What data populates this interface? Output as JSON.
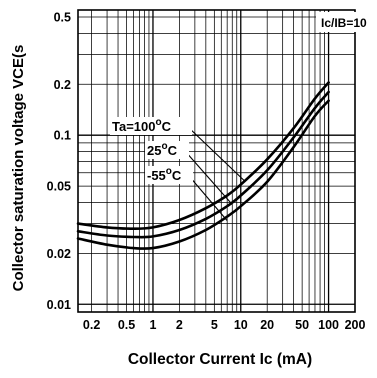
{
  "chart_data": {
    "type": "line",
    "xlabel": "Collector Current Ic (mA)",
    "ylabel": "Collector saturation voltage VCE(s",
    "x_scale": "log",
    "y_scale": "log",
    "xlim": [
      0.14,
      200
    ],
    "ylim": [
      0.009,
      0.55
    ],
    "x_ticks": [
      {
        "value": 0.2,
        "label": "0.2"
      },
      {
        "value": 0.5,
        "label": "0.5"
      },
      {
        "value": 1,
        "label": "1"
      },
      {
        "value": 2,
        "label": "2"
      },
      {
        "value": 5,
        "label": "5"
      },
      {
        "value": 10,
        "label": "10"
      },
      {
        "value": 20,
        "label": "20"
      },
      {
        "value": 50,
        "label": "50"
      },
      {
        "value": 100,
        "label": "100"
      },
      {
        "value": 200,
        "label": "200"
      }
    ],
    "y_ticks": [
      {
        "value": 0.01,
        "label": "0.01"
      },
      {
        "value": 0.02,
        "label": "0.02"
      },
      {
        "value": 0.05,
        "label": "0.05"
      },
      {
        "value": 0.1,
        "label": "0.1"
      },
      {
        "value": 0.2,
        "label": "0.2"
      },
      {
        "value": 0.5,
        "label": "0.5"
      }
    ],
    "condition_label": "Ic/IB=10",
    "series": [
      {
        "name": "Ta=100°C",
        "label_main": "Ta=100",
        "label_sup": "o",
        "label_end": "C",
        "x": [
          0.14,
          0.3,
          0.6,
          1,
          2,
          4,
          7,
          10,
          20,
          40,
          70,
          100
        ],
        "y": [
          0.03,
          0.0285,
          0.028,
          0.0285,
          0.0315,
          0.037,
          0.044,
          0.051,
          0.072,
          0.11,
          0.165,
          0.205
        ]
      },
      {
        "name": "25°C",
        "label_main": "25",
        "label_sup": "o",
        "label_end": "C",
        "x": [
          0.14,
          0.3,
          0.6,
          1,
          2,
          4,
          7,
          10,
          20,
          40,
          70,
          100
        ],
        "y": [
          0.027,
          0.0255,
          0.025,
          0.0252,
          0.0275,
          0.032,
          0.038,
          0.044,
          0.062,
          0.097,
          0.145,
          0.18
        ]
      },
      {
        "name": "-55°C",
        "label_main": "-55",
        "label_sup": "o",
        "label_end": "C",
        "x": [
          0.14,
          0.3,
          0.6,
          1,
          2,
          4,
          7,
          10,
          20,
          40,
          70,
          100
        ],
        "y": [
          0.0245,
          0.0225,
          0.0215,
          0.0215,
          0.0235,
          0.0275,
          0.033,
          0.038,
          0.053,
          0.085,
          0.13,
          0.16
        ]
      }
    ]
  }
}
